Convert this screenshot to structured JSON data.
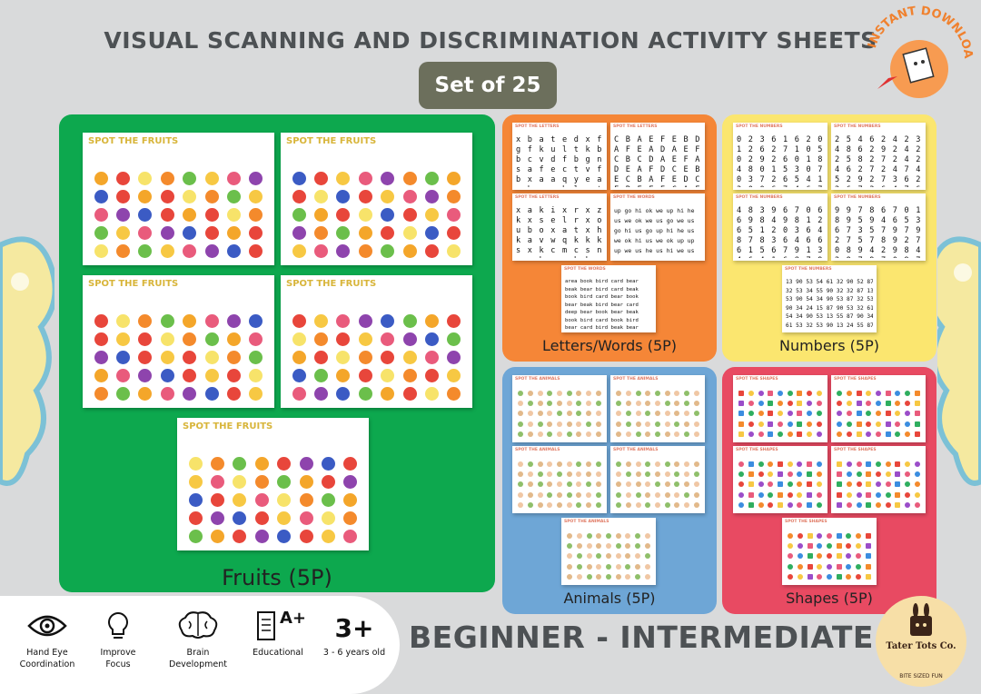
{
  "header": {
    "title": "VISUAL SCANNING AND DISCRIMINATION ACTIVITY SHEETS",
    "set_label": "Set of 25"
  },
  "stamp": {
    "text": "INSTANT DOWNLOAD"
  },
  "panels": {
    "fruits": {
      "label": "Fruits (5P)",
      "sheet_title": "SPOT THE FRUITS"
    },
    "letters": {
      "label": "Letters/Words (5P)",
      "sheet_title_letters": "SPOT THE LETTERS",
      "sheet_title_words": "SPOT THE WORDS"
    },
    "numbers": {
      "label": "Numbers (5P)",
      "sheet_title": "SPOT THE NUMBERS"
    },
    "animals": {
      "label": "Animals (5P)",
      "sheet_title": "SPOT THE ANIMALS"
    },
    "shapes": {
      "label": "Shapes (5P)",
      "sheet_title": "SPOT THE SHAPES"
    }
  },
  "features": [
    {
      "icon": "eye-icon",
      "label": "Hand Eye\nCoordination"
    },
    {
      "icon": "lightbulb-icon",
      "label": "Improve\nFocus"
    },
    {
      "icon": "brain-icon",
      "label": "Brain\nDevelopment"
    },
    {
      "icon": "grade-icon",
      "label": "Educational",
      "icon_text": "A+"
    },
    {
      "icon": "age-icon",
      "label": "3 - 6 years old",
      "icon_text": "3+"
    }
  ],
  "level": "BEGINNER - INTERMEDIATE",
  "brand": {
    "name": "Tater Tots Co.",
    "tagline": "BITE SIZED FUN"
  },
  "colors": {
    "fruits": "#0da84e",
    "letters": "#f58637",
    "numbers": "#fbe66f",
    "animals": "#6ea6d6",
    "shapes": "#e84a62",
    "badge": "#6c6f5c"
  }
}
